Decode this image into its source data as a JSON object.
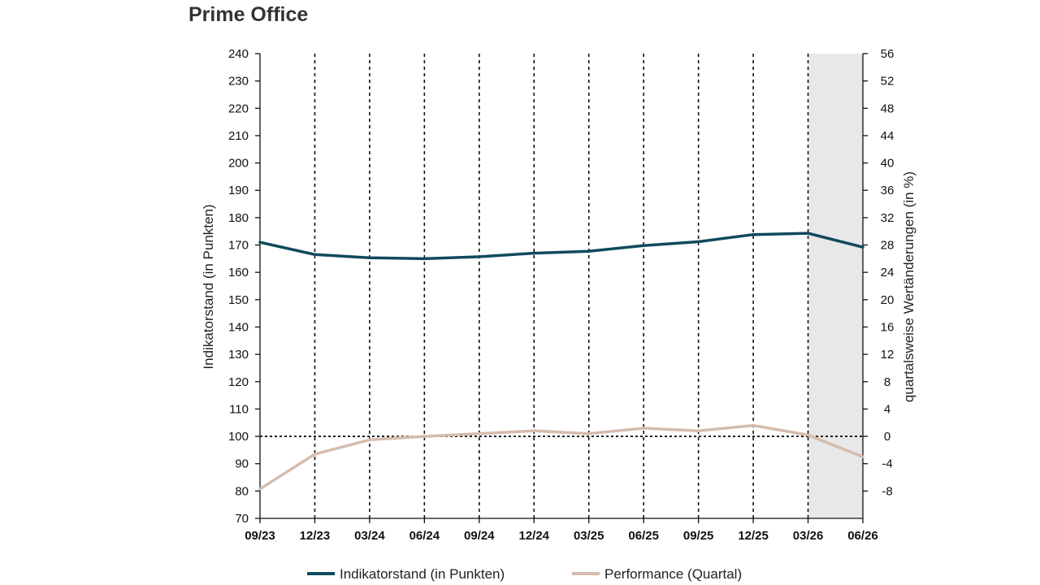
{
  "page": {
    "title": "Prime Office"
  },
  "chart_data": {
    "type": "line",
    "title": "Prime Office",
    "categories": [
      "09/23",
      "12/23",
      "03/24",
      "06/24",
      "09/24",
      "12/24",
      "03/25",
      "06/25",
      "09/25",
      "12/25",
      "03/26",
      "06/26"
    ],
    "ylabel_left": "Indikatorstand (in Punkten)",
    "ylabel_right": "quartalsweise Wertänderungen (in %)",
    "ylim_left": [
      70,
      240
    ],
    "yticks_left": [
      240,
      230,
      220,
      210,
      200,
      190,
      180,
      170,
      160,
      150,
      140,
      130,
      120,
      110,
      100,
      90,
      80,
      70
    ],
    "ylim_right": [
      -12,
      56
    ],
    "yticks_right": [
      56,
      52,
      48,
      44,
      40,
      36,
      32,
      28,
      24,
      20,
      16,
      12,
      8,
      4,
      0,
      -4,
      -8
    ],
    "forecast_shade_from": "03/26",
    "vertical_gridlines": "dashed",
    "series": [
      {
        "name": "Indikatorstand (in Punkten)",
        "axis": "left",
        "color": "#0f4a5c",
        "values": [
          171.0,
          166.5,
          165.3,
          165.0,
          165.7,
          167.0,
          167.7,
          169.8,
          171.2,
          173.8,
          174.3,
          169.2
        ]
      },
      {
        "name": "Performance (Quartal)",
        "axis": "right",
        "color": "#d4bcae",
        "values": [
          -7.7,
          -2.6,
          -0.5,
          0.0,
          0.4,
          0.8,
          0.4,
          1.2,
          0.8,
          1.6,
          0.2,
          -3.0
        ]
      }
    ],
    "legend_position": "bottom"
  }
}
